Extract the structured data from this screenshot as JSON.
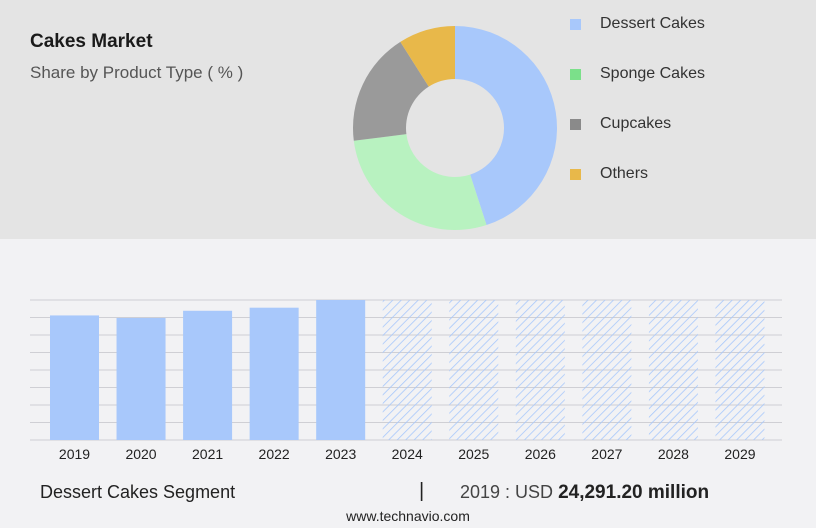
{
  "title": "Cakes Market",
  "subtitle": "Share by Product Type ( % )",
  "legend": [
    {
      "label": "Dessert Cakes",
      "color": "#a8c8fb"
    },
    {
      "label": "Sponge Cakes",
      "color": "#7be08a"
    },
    {
      "label": "Cupcakes",
      "color": "#8a8a8a"
    },
    {
      "label": "Others",
      "color": "#e8b84a"
    }
  ],
  "footer": {
    "segment": "Dessert Cakes Segment",
    "separator": "|",
    "year_unit": "2019 : USD",
    "value": "24,291.20 million"
  },
  "source": "www.technavio.com",
  "chart_data": [
    {
      "type": "pie",
      "donut": true,
      "categories": [
        "Dessert Cakes",
        "Sponge Cakes",
        "Cupcakes",
        "Others"
      ],
      "values": [
        45,
        28,
        18,
        9
      ],
      "colors": [
        "#a8c8fb",
        "#b8f2c0",
        "#9a9a9a",
        "#e8b84a"
      ]
    },
    {
      "type": "bar",
      "categories": [
        "2019",
        "2020",
        "2021",
        "2022",
        "2023",
        "2024",
        "2025",
        "2026",
        "2027",
        "2028",
        "2029"
      ],
      "values": [
        24291.2,
        23800,
        25200,
        25800,
        27300,
        27300,
        27300,
        27300,
        27300,
        27300,
        27300
      ],
      "forecast_from": "2024",
      "ylim": [
        0,
        27300
      ],
      "grid": true,
      "colors": {
        "actual": "#a8c8fb",
        "forecast_hatch": "#a8c8fb"
      }
    }
  ]
}
